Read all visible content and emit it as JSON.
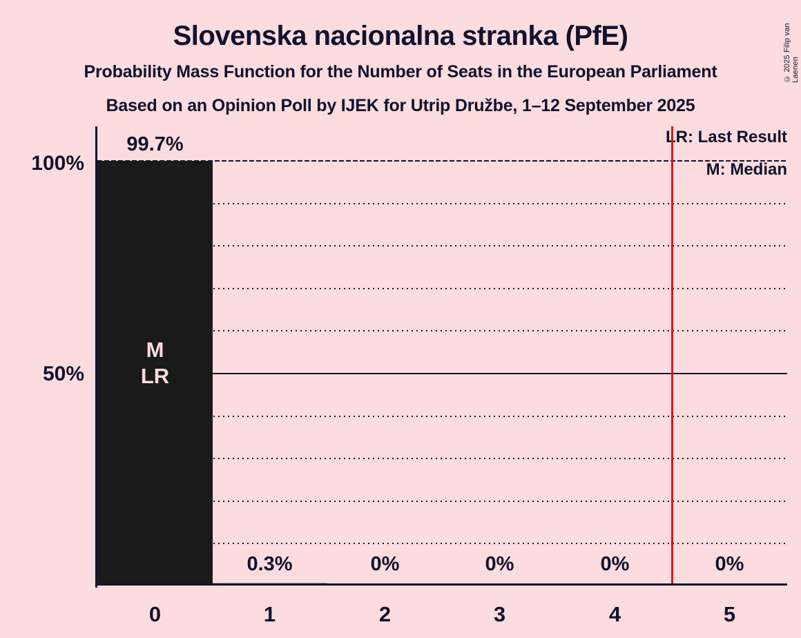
{
  "title": "Slovenska nacionalna stranka (PfE)",
  "subtitle": "Probability Mass Function for the Number of Seats in the European Parliament",
  "poll_line": "Based on an Opinion Poll by IJEK for Utrip Družbe, 1–12 September 2025",
  "copyright": "© 2025 Filip van Laenen",
  "legend": {
    "last_result": "LR: Last Result",
    "median": "M: Median"
  },
  "y_axis": {
    "label_100": "100%",
    "label_50": "50%"
  },
  "bar_markers": {
    "median": "M",
    "last_result": "LR"
  },
  "colors": {
    "background": "#fcdcde",
    "bar": "#1b1a1a",
    "text": "#11122e",
    "last_result_line": "#e11212"
  },
  "chart_data": {
    "type": "bar",
    "title": "Slovenska nacionalna stranka (PfE)",
    "subtitle": "Probability Mass Function for the Number of Seats in the European Parliament",
    "source_line": "Based on an Opinion Poll by IJEK for Utrip Družbe, 1–12 September 2025",
    "categories": [
      "0",
      "1",
      "2",
      "3",
      "4",
      "5"
    ],
    "values": [
      99.7,
      0.3,
      0,
      0,
      0,
      0
    ],
    "value_labels": [
      "99.7%",
      "0.3%",
      "0%",
      "0%",
      "0%",
      "0%"
    ],
    "ylabel": "",
    "xlabel": "",
    "ylim": [
      0,
      108
    ],
    "yticks": [
      50,
      100
    ],
    "ytick_labels": [
      "50%",
      "100%"
    ],
    "gridlines": {
      "dotted_every_percent": 10,
      "solid_at_percent": 50,
      "dashed_at_percent": 100
    },
    "legend_position": "top-right",
    "legend_entries": [
      "LR: Last Result",
      "M: Median"
    ],
    "annotations": {
      "median_category": "0",
      "last_result_category": "0",
      "last_result_vline_x": 4.5
    }
  }
}
